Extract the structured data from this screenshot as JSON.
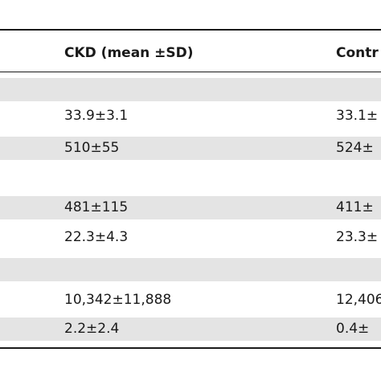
{
  "table": {
    "header": {
      "col1": "CKD (mean ±SD)",
      "col2": "Contr"
    },
    "rows": [
      {
        "shaded": true,
        "col1": "",
        "col2": ""
      },
      {
        "shaded": false,
        "col1": "33.9±3.1",
        "col2": "33.1±"
      },
      {
        "shaded": true,
        "col1": "510±55",
        "col2": "524±"
      },
      {
        "shaded": false,
        "col1": "",
        "col2": ""
      },
      {
        "shaded": true,
        "col1": "481±115",
        "col2": "411±"
      },
      {
        "shaded": false,
        "col1": "22.3±4.3",
        "col2": "23.3±"
      },
      {
        "shaded": true,
        "col1": "",
        "col2": ""
      },
      {
        "shaded": false,
        "col1": "10,342±11,888",
        "col2": "12,406"
      },
      {
        "shaded": true,
        "col1": "2.2±2.4",
        "col2": "0.4±"
      }
    ]
  }
}
